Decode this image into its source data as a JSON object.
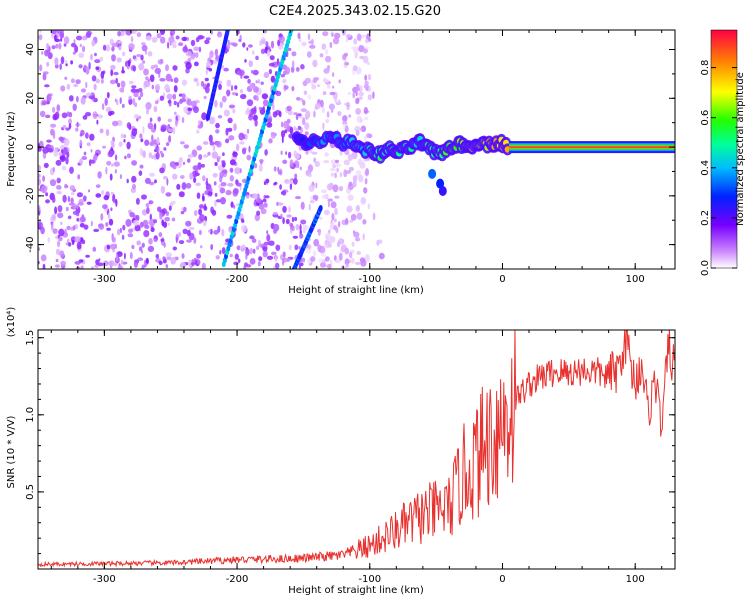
{
  "title": "C2E4.2025.343.02.15.G20",
  "chart_data": [
    {
      "type": "heatmap",
      "xlabel": "Height of straight line (km)",
      "ylabel": "Frequency (Hz)",
      "xlim": [
        -350,
        130
      ],
      "ylim": [
        -50,
        48
      ],
      "xticks": [
        -300,
        -200,
        -100,
        0,
        100
      ],
      "yticks": [
        -40,
        -20,
        0,
        20,
        40
      ],
      "colorbar": {
        "label": "Normalized spectral amplitude",
        "range": [
          0.0,
          0.95
        ],
        "ticks": [
          "0.0",
          "0.2",
          "0.4",
          "0.6",
          "0.8"
        ],
        "tick_values": [
          0.0,
          0.2,
          0.4,
          0.6,
          0.8
        ]
      },
      "features": {
        "dc_line": {
          "y": 0,
          "x_from": 10,
          "x_to": 130,
          "amplitude": 0.95
        },
        "noisy_region": {
          "x_from": -350,
          "x_to": -100,
          "y_from": -50,
          "y_to": 48,
          "amplitude": 0.15
        },
        "tilted_tracks": [
          {
            "from": [
              -222,
              12
            ],
            "to": [
              -207,
              48
            ],
            "amplitude": 0.3
          },
          {
            "from": [
              -210,
              -48
            ],
            "to": [
              -159,
              48
            ],
            "amplitude": 0.45
          },
          {
            "from": [
              -157,
              -50
            ],
            "to": [
              -137,
              -25
            ],
            "amplitude": 0.35
          }
        ],
        "main_band_points": [
          [
            -155,
            3,
            0.3
          ],
          [
            -145,
            2,
            0.35
          ],
          [
            -130,
            4,
            0.4
          ],
          [
            -120,
            2,
            0.4
          ],
          [
            -110,
            1,
            0.45
          ],
          [
            -100,
            -2,
            0.5
          ],
          [
            -92,
            -3,
            0.55
          ],
          [
            -85,
            -1,
            0.5
          ],
          [
            -78,
            -2,
            0.55
          ],
          [
            -70,
            0,
            0.55
          ],
          [
            -62,
            2,
            0.5
          ],
          [
            -55,
            -1,
            0.6
          ],
          [
            -48,
            -3,
            0.6
          ],
          [
            -40,
            0,
            0.65
          ],
          [
            -32,
            1,
            0.7
          ],
          [
            -25,
            0,
            0.75
          ],
          [
            -18,
            2,
            0.75
          ],
          [
            -10,
            1,
            0.8
          ],
          [
            -2,
            2,
            0.85
          ],
          [
            5,
            0,
            0.9
          ]
        ],
        "side_blobs": [
          [
            -53,
            -11,
            0.35
          ],
          [
            -47,
            -15,
            0.3
          ],
          [
            -45,
            -18,
            0.25
          ]
        ]
      }
    },
    {
      "type": "line",
      "xlabel": "Height of straight line (km)",
      "ylabel": "SNR (10 * V/V)",
      "multiplier": "(x10⁴)",
      "xlim": [
        -350,
        130
      ],
      "ylim": [
        0,
        15500
      ],
      "xticks": [
        -300,
        -200,
        -100,
        0,
        100
      ],
      "yticks": [
        5000,
        10000,
        15000
      ],
      "ytick_labels": [
        "0.5",
        "1.0",
        "1.5"
      ],
      "color": "#e8322f",
      "series": [
        {
          "name": "SNR",
          "x": [
            -350,
            -300,
            -250,
            -200,
            -150,
            -120,
            -100,
            -80,
            -60,
            -40,
            -30,
            -20,
            -10,
            0,
            10,
            20,
            30,
            40,
            50,
            60,
            70,
            80,
            88,
            92,
            95,
            100,
            105,
            110,
            115,
            120,
            125,
            130
          ],
          "y": [
            300,
            350,
            400,
            600,
            700,
            900,
            1500,
            2500,
            3500,
            4000,
            6000,
            7000,
            8500,
            9500,
            11000,
            12000,
            12500,
            12800,
            12700,
            12900,
            12800,
            12500,
            13000,
            15300,
            14000,
            12000,
            13500,
            10000,
            12500,
            9000,
            14500,
            13000
          ]
        }
      ]
    }
  ]
}
